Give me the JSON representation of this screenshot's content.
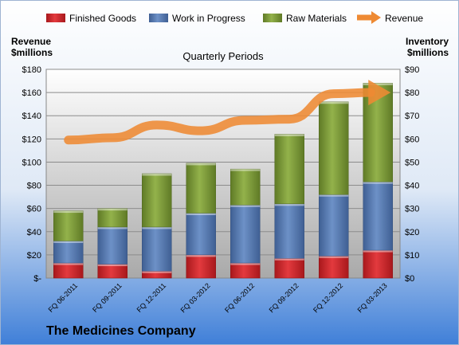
{
  "company": "The Medicines Company",
  "colors": {
    "finished_goods": "#d8262a",
    "work_in_progress": "#5b80b8",
    "raw_materials": "#7e9d3c",
    "revenue": "#ee8a33"
  },
  "chart_data": {
    "type": "bar",
    "stacked": true,
    "title": "Quarterly Periods",
    "ylabel_left": [
      "Revenue",
      "$millions"
    ],
    "ylabel_right": [
      "Inventory",
      "$millions"
    ],
    "categories": [
      "FQ 06-2011",
      "FQ 09-2011",
      "FQ 12-2011",
      "FQ 03-2012",
      "FQ 06-2012",
      "FQ 09-2012",
      "FQ 12-2012",
      "FQ 03-2013"
    ],
    "left_ticks": [
      "$-",
      "$20",
      "$40",
      "$60",
      "$80",
      "$100",
      "$120",
      "$140",
      "$160",
      "$180"
    ],
    "right_ticks": [
      "$0",
      "$10",
      "$20",
      "$30",
      "$40",
      "$50",
      "$60",
      "$70",
      "$80",
      "$90"
    ],
    "ylim_left": [
      0,
      180
    ],
    "ylim_right": [
      0,
      90
    ],
    "grid": true,
    "legend_position": "top",
    "series": [
      {
        "name": "Finished Goods",
        "axis": "right",
        "kind": "bar",
        "values": [
          6.5,
          6,
          3,
          10,
          6.5,
          8.5,
          9.5,
          12
        ]
      },
      {
        "name": "Work in Progress",
        "axis": "right",
        "kind": "bar",
        "values": [
          9.5,
          16,
          19,
          18,
          25,
          23.5,
          26.5,
          29.5
        ]
      },
      {
        "name": "Raw Materials",
        "axis": "right",
        "kind": "bar",
        "values": [
          13,
          8,
          23,
          21.5,
          15.5,
          30,
          40,
          42.5
        ]
      },
      {
        "name": "Revenue",
        "axis": "left",
        "kind": "line",
        "values": [
          119,
          121,
          132,
          127,
          136,
          137,
          159,
          160
        ]
      }
    ]
  }
}
